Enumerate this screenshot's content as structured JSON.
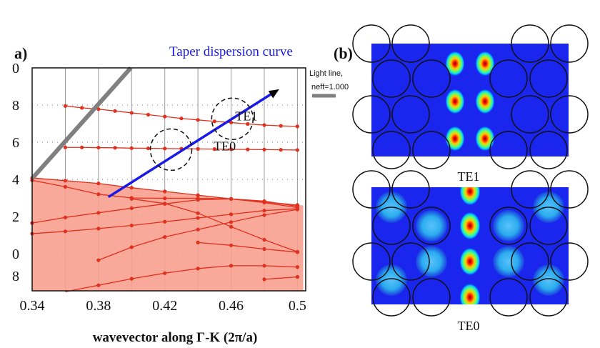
{
  "panel_labels": {
    "a": "a)",
    "b": "(b)"
  },
  "chart_data": {
    "type": "line",
    "xlabel": "wavevector along Γ-K (2π/a)",
    "ylabel": "",
    "xlim": [
      0.34,
      0.505
    ],
    "ylim": [
      0.18,
      0.3
    ],
    "x_ticks": [
      0.34,
      0.38,
      0.42,
      0.46,
      0.5
    ],
    "x_tick_labels": [
      "0.34",
      "0.38",
      "0.42",
      "0.46",
      "0.5"
    ],
    "y_ticks": [
      0.2,
      0.22,
      0.24,
      0.26,
      0.28,
      0.3
    ],
    "y_tick_labels": [
      "8",
      "0",
      "2",
      "4",
      "6",
      "8",
      "0"
    ],
    "y_tick_values": [
      0.188,
      0.2,
      0.22,
      0.24,
      0.26,
      0.28,
      0.3
    ],
    "grid": true,
    "colors": {
      "bands": "#e0301e",
      "fill": "#f7a08f",
      "light_line": "#808080",
      "taper": "#1a1ae6"
    },
    "light_line": {
      "x": [
        0.34,
        0.3995
      ],
      "y": [
        0.2405,
        0.3
      ]
    },
    "taper_curve": {
      "x": [
        0.386,
        0.489
      ],
      "y": [
        0.2305,
        0.2885
      ],
      "label": "Taper dispersion curve"
    },
    "annotations": [
      {
        "text": "TE1",
        "x": 0.4625,
        "y": 0.2717
      },
      {
        "text": "TE0",
        "x": 0.4495,
        "y": 0.2555
      }
    ],
    "light_line_legend": {
      "line1": "Light line,",
      "line2": "neff=1.000"
    },
    "filled_region": {
      "x": [
        0.34,
        0.36,
        0.38,
        0.4,
        0.42,
        0.44,
        0.46,
        0.48,
        0.5,
        0.5035
      ],
      "upper": [
        0.2408,
        0.2393,
        0.2378,
        0.2355,
        0.2335,
        0.2315,
        0.2295,
        0.2278,
        0.2262,
        0.226
      ],
      "lower": [
        0.18,
        0.18,
        0.18,
        0.18,
        0.18,
        0.18,
        0.18,
        0.18,
        0.18,
        0.18
      ]
    },
    "series": [
      {
        "x": [
          0.36,
          0.37,
          0.38,
          0.39,
          0.4,
          0.41,
          0.42,
          0.43,
          0.44,
          0.45,
          0.46,
          0.47,
          0.48,
          0.49,
          0.5
        ],
        "y": [
          0.2795,
          0.2785,
          0.2778,
          0.2768,
          0.2758,
          0.2748,
          0.2738,
          0.2728,
          0.272,
          0.2712,
          0.2706,
          0.2698,
          0.2692,
          0.2688,
          0.2685
        ]
      },
      {
        "x": [
          0.36,
          0.37,
          0.38,
          0.39,
          0.4,
          0.41,
          0.42,
          0.43,
          0.44,
          0.45,
          0.46,
          0.47,
          0.48,
          0.49,
          0.5
        ],
        "y": [
          0.2572,
          0.2572,
          0.2571,
          0.257,
          0.2568,
          0.2567,
          0.2566,
          0.2565,
          0.2564,
          0.2563,
          0.2562,
          0.2561,
          0.256,
          0.2559,
          0.2558
        ]
      },
      {
        "x": [
          0.34,
          0.36,
          0.38,
          0.4,
          0.42,
          0.44,
          0.46,
          0.48,
          0.5
        ],
        "y": [
          0.2408,
          0.2393,
          0.2378,
          0.2355,
          0.2335,
          0.2315,
          0.2295,
          0.2278,
          0.2262
        ]
      },
      {
        "x": [
          0.34,
          0.36,
          0.38,
          0.4,
          0.42,
          0.44,
          0.46,
          0.48,
          0.5
        ],
        "y": [
          0.2395,
          0.236,
          0.232,
          0.23,
          0.2298,
          0.2298,
          0.2295,
          0.2283,
          0.2255
        ]
      },
      {
        "x": [
          0.34,
          0.36,
          0.38,
          0.4,
          0.42,
          0.44,
          0.46,
          0.48,
          0.5
        ],
        "y": [
          0.2165,
          0.2195,
          0.222,
          0.2245,
          0.2268,
          0.229,
          0.2295,
          0.2275,
          0.2248
        ]
      },
      {
        "x": [
          0.34,
          0.36,
          0.38,
          0.4,
          0.42,
          0.44,
          0.46,
          0.48,
          0.5
        ],
        "y": [
          0.2108,
          0.212,
          0.2135,
          0.2152,
          0.2172,
          0.2192,
          0.2212,
          0.2232,
          0.2242
        ]
      },
      {
        "x": [
          0.38,
          0.4,
          0.42,
          0.44,
          0.46,
          0.48,
          0.5
        ],
        "y": [
          0.1965,
          0.2035,
          0.209,
          0.213,
          0.217,
          0.2208,
          0.2238
        ]
      },
      {
        "x": [
          0.4,
          0.42,
          0.44,
          0.46,
          0.48,
          0.5
        ],
        "y": [
          0.2295,
          0.227,
          0.2218,
          0.2145,
          0.2075,
          0.201
        ]
      },
      {
        "x": [
          0.44,
          0.46,
          0.48,
          0.5
        ],
        "y": [
          0.206,
          0.2045,
          0.2025,
          0.2008
        ]
      },
      {
        "x": [
          0.36,
          0.38,
          0.4,
          0.42,
          0.44,
          0.46,
          0.48,
          0.5
        ],
        "y": [
          0.1795,
          0.183,
          0.1865,
          0.1895,
          0.192,
          0.1935,
          0.1935,
          0.1928
        ]
      },
      {
        "x": [
          0.48,
          0.5
        ],
        "y": [
          0.1862,
          0.1875
        ]
      }
    ]
  },
  "field_maps": [
    {
      "title": "TE1",
      "mode": "TE1"
    },
    {
      "title": "TE0",
      "mode": "TE0"
    }
  ]
}
